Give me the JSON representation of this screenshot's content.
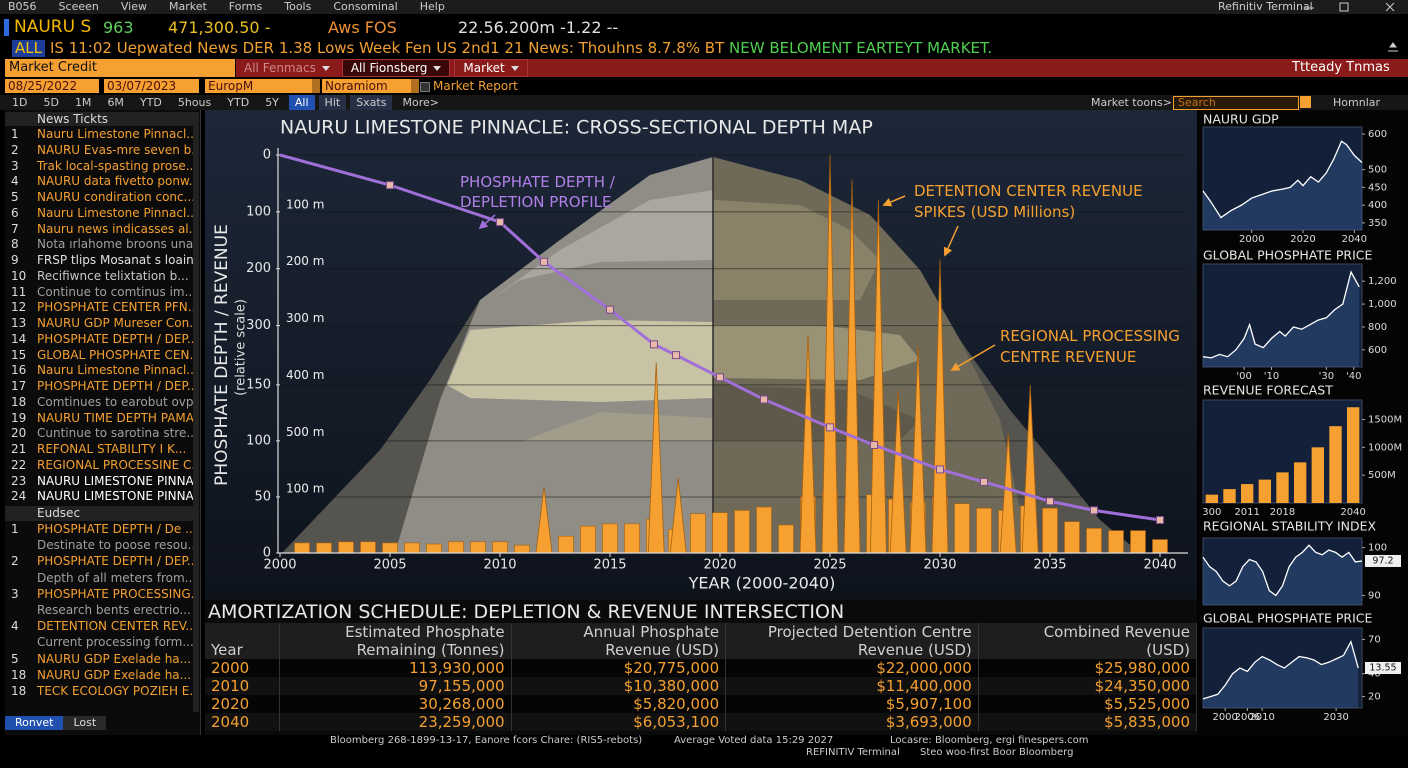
{
  "menu_bar": {
    "items": [
      "B056",
      "Sceeen",
      "View",
      "Market",
      "Forms",
      "Tools",
      "Consominal",
      "Help"
    ],
    "app_title": "Refinitiv Terminal"
  },
  "quote_bar": {
    "symbol": "NAURU S",
    "last": "963",
    "value": "471,300.50 -",
    "exchange": "Aws FOS",
    "change": "22.56.200m -1.22 --"
  },
  "news_ticker": {
    "tag": "ALL",
    "text": "IS 11:02 Uepwated News DER 1.38 Lows Week Fen US 2nd1 21 News: Thouhns 8.7.8% BT",
    "alert": "NEW BELOMENT EARTEYT MARKET."
  },
  "function_bar": {
    "active": "Market Credit",
    "menus": [
      "All Fenmacs",
      "All Fionsberg",
      "Market"
    ],
    "right": "Ttteady Tnmas"
  },
  "filter_bar": {
    "start_date": "08/25/2022",
    "end_date": "03/07/2023",
    "region": "EuropM",
    "sector": "Noramiom",
    "report": "Market Report"
  },
  "range_bar": {
    "ranges": [
      "1D",
      "5D",
      "1M",
      "6M",
      "YTD",
      "5hous",
      "YTD",
      "5Y",
      "All",
      "Hit",
      "Sxats",
      "More>"
    ]
  },
  "search_bar": {
    "label": "Market toons>",
    "placeholder": "Search",
    "user": "Homnlar"
  },
  "news_panel": {
    "title": "News Tickts",
    "items": [
      {
        "number": "1",
        "text": "Nauru Limestone Pinnacl...",
        "color": "#f5a030"
      },
      {
        "number": "2",
        "text": "NAURU Evas-mre seven b...",
        "color": "#f5a030"
      },
      {
        "number": "3",
        "text": "Trak local-spasting prose...",
        "color": "#f5a030"
      },
      {
        "number": "4",
        "text": "NAURU data fivetto ponw...",
        "color": "#f5a030"
      },
      {
        "number": "5",
        "text": "NAURU condiration conc...",
        "color": "#f5a030"
      },
      {
        "number": "6",
        "text": "Nauru Limestone Pinnacl...",
        "color": "#f5a030"
      },
      {
        "number": "7",
        "text": "Nauru news indicasses al...",
        "color": "#f5a030"
      },
      {
        "number": "8",
        "text": "Nota ırlahome broons unam...",
        "color": "#a0a0a0"
      },
      {
        "number": "9",
        "text": "FRSP tlips Mosanat s loain...",
        "color": "#e0e0e0"
      },
      {
        "number": "10",
        "text": "Recifiwnce telixtation b...",
        "color": "#c8c8c8"
      },
      {
        "number": "11",
        "text": "Continue to comtinus im...",
        "color": "#a0a0a0"
      },
      {
        "number": "12",
        "text": "PHOSPHATE CENTER PFN...",
        "color": "#f5a030"
      },
      {
        "number": "13",
        "text": "NAURU GDP Mureser Con...",
        "color": "#f5a030"
      },
      {
        "number": "14",
        "text": "PHOSPHATE DEPTH / DEP...",
        "color": "#f5a030"
      },
      {
        "number": "15",
        "text": "GLOBAL PHOSPHATE CEN...",
        "color": "#f5a030"
      },
      {
        "number": "16",
        "text": "Nauru Limestone Pinnacl...",
        "color": "#f5a030"
      },
      {
        "number": "17",
        "text": "PHOSPHATE DEPTH / DEP...",
        "color": "#f5a030"
      },
      {
        "number": "18",
        "text": "Comtinues to earobut ovp...",
        "color": "#a0a0a0"
      },
      {
        "number": "19",
        "text": "NAURU TIME DEPTH PAMA...",
        "color": "#f5a030"
      },
      {
        "number": "20",
        "text": "Cuntinue to sarotina stre...",
        "color": "#a0a0a0"
      },
      {
        "number": "21",
        "text": "REFONAL STABILITY I K...",
        "color": "#f5a030"
      },
      {
        "number": "22",
        "text": "REGIONAL PROCESSINE C...",
        "color": "#f5a030"
      },
      {
        "number": "23",
        "text": "NAURU LIMESTONE PINNA...",
        "color": "#ffffff"
      },
      {
        "number": "24",
        "text": "NAURU LIMESTONE PINNA...",
        "color": "#ffffff"
      }
    ],
    "section_title": "Eudsec",
    "section_items": [
      {
        "number": "1",
        "text": "PHOSPHATE DEPTH / De ...",
        "color": "#f5a030"
      },
      {
        "text": "Destinate to poose resou...",
        "color": "#a0a0a0"
      },
      {
        "number": "2",
        "text": "PHOSPHATE DEPTH / DEP...",
        "color": "#f5a030"
      },
      {
        "text": "Depth of all meters from...",
        "color": "#a0a0a0"
      },
      {
        "number": "3",
        "text": "PHOSPHATE PROCESSING...",
        "color": "#f5a030"
      },
      {
        "text": "Research bents erectrio...",
        "color": "#a0a0a0"
      },
      {
        "number": "4",
        "text": "DETENTION CENTER REV...",
        "color": "#f5a030"
      },
      {
        "text": "Current processing form...",
        "color": "#a0a0a0"
      },
      {
        "number": "5",
        "text": "NAURU GDP Exelade ha...",
        "color": "#f5a030"
      },
      {
        "number": "18",
        "text": "NAURU GDP Exelade ha...",
        "color": "#f5a030"
      },
      {
        "number": "18",
        "text": "TECK ECOLOGY POZIEH E...",
        "color": "#f5a030"
      }
    ],
    "tabs": [
      "Ronvet",
      "Lost"
    ]
  },
  "chart_data": {
    "type": "combo",
    "title": "NAURU LIMESTONE PINNACLE: CROSS-SECTIONAL DEPTH MAP",
    "y_label": "PHOSPHATE DEPTH / REVENUE",
    "y_sublabel": "(relative scale)",
    "x_label": "YEAR (2000-2040)",
    "xlim": [
      2000,
      2041
    ],
    "xticks": [
      2000,
      2005,
      2010,
      2015,
      2020,
      2025,
      2030,
      2035,
      2040
    ],
    "ylim": [
      0,
      355
    ],
    "yticks": [
      0,
      50,
      100,
      150
    ],
    "y2lim": [
      0,
      700
    ],
    "y2ticks": [
      0,
      100,
      200,
      300
    ],
    "y2_inverted": true,
    "grid": true,
    "layer_labels": [
      "100 m",
      "200 m",
      "300 m",
      "400 m",
      "500 m",
      "100 m"
    ],
    "series": [
      {
        "name": "REGIONAL PROCESSING CENTRE REVENUE",
        "type": "bar",
        "color": "#f5a030",
        "x": [
          2001,
          2002,
          2003,
          2004,
          2005,
          2006,
          2007,
          2008,
          2009,
          2010,
          2011,
          2013,
          2014,
          2015,
          2016,
          2017,
          2018,
          2019,
          2020,
          2021,
          2022,
          2023,
          2024,
          2025,
          2026,
          2027,
          2028,
          2029,
          2030,
          2031,
          2032,
          2033,
          2034,
          2035,
          2036,
          2037,
          2038,
          2039,
          2040
        ],
        "values": [
          9,
          9,
          10,
          10,
          9,
          9,
          8,
          10,
          10,
          10,
          7,
          15,
          24,
          26,
          26,
          30,
          21,
          35,
          36,
          38,
          41,
          25,
          50,
          55,
          45,
          52,
          48,
          45,
          50,
          44,
          40,
          38,
          42,
          40,
          28,
          22,
          20,
          20,
          12
        ]
      },
      {
        "name": "DETENTION CENTER REVENUE SPIKES (USD Millions)",
        "type": "spike",
        "color": "#f5a030",
        "x": [
          2012,
          2017.1,
          2018.1,
          2024,
          2025,
          2026,
          2027.2,
          2028.1,
          2029,
          2030,
          2033.1,
          2034.1
        ],
        "values": [
          59,
          170,
          67,
          195,
          355,
          333,
          315,
          145,
          185,
          262,
          107,
          150
        ]
      },
      {
        "name": "PHOSPHATE DEPTH / DEPLETION PROFILE",
        "type": "line",
        "axis": "y2",
        "color": "#a070d8",
        "x": [
          2000,
          2005,
          2010,
          2012,
          2015,
          2017,
          2018,
          2020,
          2022,
          2025,
          2027,
          2030,
          2032,
          2035,
          2037,
          2040
        ],
        "values": [
          0,
          53,
          118,
          188,
          272,
          333,
          352,
          391,
          430,
          479,
          510,
          553,
          575,
          609,
          625,
          642
        ]
      }
    ]
  },
  "table": {
    "title": "AMORTIZATION SCHEDULE: DEPLETION & REVENUE INTERSECTION",
    "headers": [
      [
        "Year"
      ],
      [
        "Estimated Phosphate",
        "Remaining (Tonnes)"
      ],
      [
        "Annual Phosphate",
        "Revenue (USD)"
      ],
      [
        "Projected Detention Centre",
        "Revenue (USD)"
      ],
      [
        "Combined Revenue",
        "(USD)"
      ]
    ],
    "rows": [
      [
        "2000",
        "113,930,000",
        "$20,775,000",
        "$22,000,000",
        "$25,980,000"
      ],
      [
        "2010",
        "97,155,000",
        "$10,380,000",
        "$11,400,000",
        "$24,350,000"
      ],
      [
        "2020",
        "30,268,000",
        "$5,820,000",
        "$5,907,100",
        "$5,525,000"
      ],
      [
        "2040",
        "23,259,000",
        "$6,053,100",
        "$3,693,000",
        "$5,835,000"
      ]
    ]
  },
  "sidebar": [
    {
      "title": "NAURU GDP",
      "type": "line",
      "color": "#ffffff",
      "x": [
        1981,
        1984,
        1988,
        1992,
        1996,
        2000,
        2004,
        2008,
        2012,
        2015,
        2018,
        2020,
        2023,
        2026,
        2029,
        2032,
        2035,
        2037,
        2040,
        2043
      ],
      "values": [
        440,
        410,
        365,
        385,
        400,
        420,
        430,
        440,
        445,
        450,
        470,
        455,
        480,
        465,
        490,
        530,
        580,
        570,
        540,
        520
      ],
      "xlim": [
        1981,
        2043
      ],
      "xticks": [
        2000,
        2020,
        2040
      ],
      "ylim": [
        330,
        620
      ],
      "yticks": [
        350,
        400,
        450,
        500,
        600
      ]
    },
    {
      "title": "GLOBAL PHOSPHATE PRICE",
      "type": "line",
      "color": "#ffffff",
      "x": [
        1985,
        1988,
        1991,
        1994,
        1997,
        2000,
        2002,
        2004,
        2007,
        2010,
        2013,
        2015,
        2018,
        2021,
        2024,
        2027,
        2030,
        2033,
        2036,
        2039,
        2042
      ],
      "values": [
        540,
        530,
        560,
        540,
        600,
        700,
        820,
        650,
        620,
        700,
        760,
        720,
        800,
        780,
        820,
        860,
        880,
        950,
        1000,
        1280,
        1150
      ],
      "xlim": [
        1985,
        2043
      ],
      "xticks": [
        {
          "value": 2000,
          "label": "'00"
        },
        {
          "value": 2010,
          "label": "'10"
        },
        {
          "value": 2030,
          "label": "'30"
        },
        {
          "value": 2040,
          "label": "'40"
        }
      ],
      "ylim": [
        450,
        1350
      ],
      "yticks": [
        600,
        800,
        {
          "value": 1000,
          "label": "1,000"
        },
        {
          "value": 1200,
          "label": "1,200"
        }
      ]
    },
    {
      "title": "REVENUE FORECAST",
      "type": "bar",
      "color": "#f5a030",
      "categories": [
        "300",
        null,
        "2011",
        null,
        "2018",
        null,
        null,
        null,
        "2040"
      ],
      "values": [
        150,
        250,
        340,
        420,
        550,
        730,
        1000,
        1380,
        1720
      ],
      "ylim": [
        0,
        1850
      ],
      "yticks": [
        {
          "value": 500,
          "label": "500M"
        },
        {
          "value": 1000,
          "label": "1000M"
        },
        {
          "value": 1500,
          "label": "1500M"
        }
      ]
    },
    {
      "title": "REGIONAL STABILITY INDEX",
      "type": "line",
      "color": "#ffffff",
      "values": [
        98,
        96,
        95,
        93,
        92,
        93,
        96,
        97.5,
        97,
        95,
        91,
        90,
        92,
        96,
        98,
        99,
        100.5,
        99,
        98.5,
        99.5,
        99,
        98,
        99,
        97,
        97.2
      ],
      "ylim": [
        88,
        102
      ],
      "yticks": [
        90,
        100
      ],
      "last_value_box": true
    },
    {
      "title": "GLOBAL PHOSPHATE PRICE",
      "type": "line",
      "color": "#ffffff",
      "x": [
        1994,
        1996,
        1998,
        2000,
        2002,
        2004,
        2006,
        2008,
        2010,
        2012,
        2014,
        2016,
        2018,
        2020,
        2022,
        2024,
        2026,
        2028,
        2030,
        2032,
        2034,
        2036
      ],
      "values": [
        18,
        20,
        22,
        30,
        40,
        45,
        42,
        50,
        55,
        52,
        48,
        45,
        50,
        55,
        54,
        52,
        48,
        50,
        53,
        56,
        68,
        45
      ],
      "xlim": [
        1994,
        2037
      ],
      "xticks": [
        2000,
        2006,
        2010,
        2030
      ],
      "ylim": [
        10,
        80
      ],
      "yticks": [
        20,
        40,
        70
      ],
      "current_label": "13.55"
    }
  ],
  "footer": {
    "source": "Bloomberg 268-1899-13-17, Eanore fcors Chare: (RIS5-rebots)",
    "update": "Average Voted data 15:29 2027",
    "location": "Locasre: Bloomberg, ergi finespers.com",
    "terminal": "REFINITIV Terminal",
    "credit": "Steo woo-first Boor Bloomberg"
  }
}
